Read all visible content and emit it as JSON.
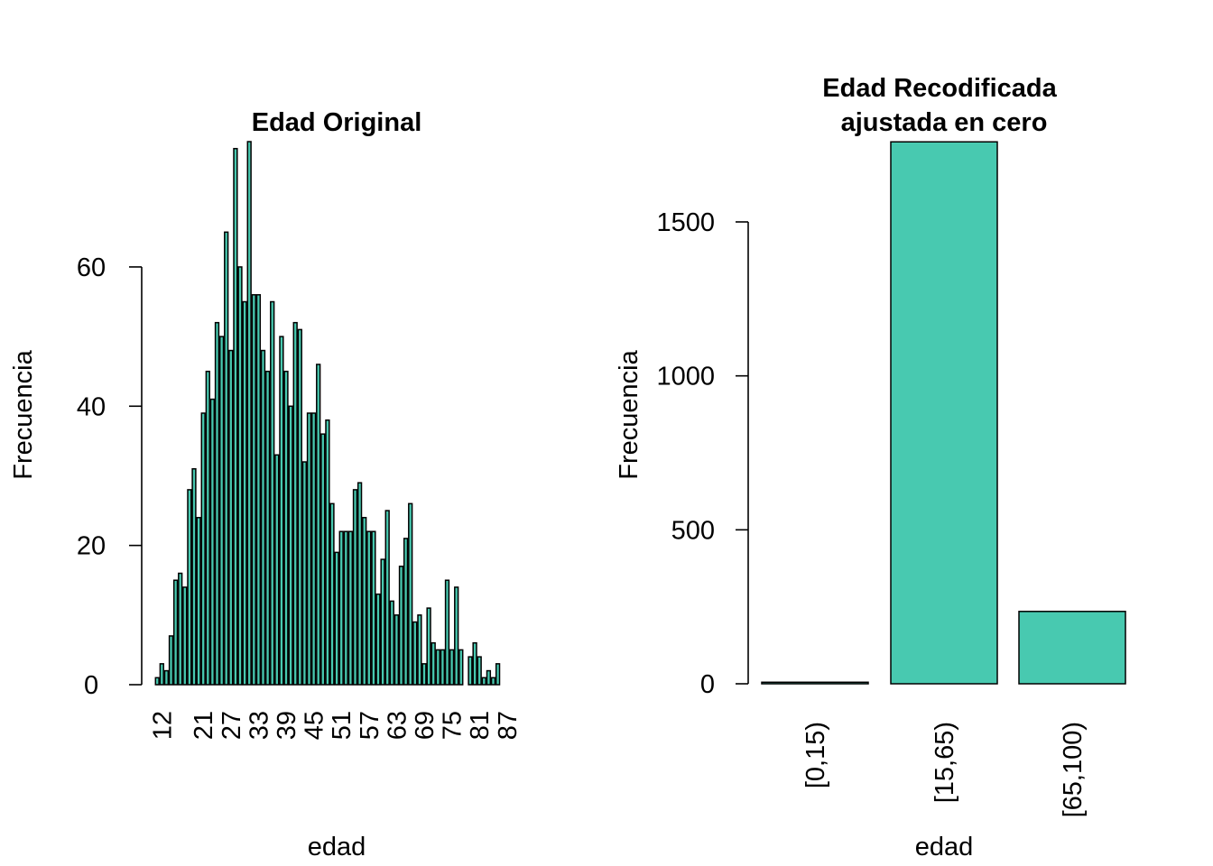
{
  "colors": {
    "bar_fill": "#48C9B0",
    "bar_stroke": "#000000"
  },
  "chart_data": [
    {
      "type": "bar",
      "title": "Edad Original",
      "xlabel": "edad",
      "ylabel": "Frecuencia",
      "ylim": [
        0,
        78
      ],
      "yticks": [
        0,
        20,
        40,
        60
      ],
      "categories": [
        11,
        12,
        13,
        14,
        15,
        16,
        17,
        18,
        19,
        20,
        21,
        22,
        23,
        24,
        25,
        26,
        27,
        28,
        29,
        30,
        31,
        32,
        33,
        34,
        35,
        36,
        37,
        38,
        39,
        40,
        41,
        42,
        43,
        44,
        45,
        46,
        47,
        48,
        49,
        50,
        51,
        52,
        53,
        54,
        55,
        56,
        57,
        58,
        59,
        60,
        61,
        62,
        63,
        64,
        65,
        66,
        67,
        68,
        69,
        70,
        71,
        72,
        73,
        74,
        75,
        76,
        77,
        78,
        79,
        80,
        81,
        82,
        83,
        84,
        85,
        86,
        87,
        88,
        89,
        90,
        91
      ],
      "values": [
        1,
        3,
        2,
        7,
        15,
        16,
        14,
        28,
        31,
        24,
        39,
        45,
        41,
        52,
        50,
        65,
        48,
        77,
        60,
        55,
        78,
        56,
        56,
        48,
        45,
        55,
        33,
        50,
        45,
        40,
        52,
        51,
        32,
        39,
        39,
        46,
        36,
        38,
        26,
        19,
        22,
        22,
        22,
        28,
        29,
        24,
        22,
        22,
        13,
        18,
        25,
        12,
        10,
        17,
        21,
        26,
        9,
        10,
        3,
        11,
        6,
        5,
        5,
        15,
        5,
        14,
        5,
        0,
        4,
        6,
        4,
        1,
        2,
        1,
        3,
        0,
        0,
        0,
        0,
        0,
        0
      ],
      "xtick_labels": [
        "12",
        "21",
        "27",
        "33",
        "39",
        "45",
        "51",
        "57",
        "63",
        "69",
        "75",
        "81",
        "87"
      ]
    },
    {
      "type": "bar",
      "title": "Edad Recodificada\najustada en cero",
      "title_lines": [
        "Edad Recodificada",
        "ajustada en cero"
      ],
      "xlabel": "edad",
      "ylabel": "Frecuencia",
      "ylim": [
        0,
        1750
      ],
      "yticks": [
        0,
        500,
        1000,
        1500
      ],
      "categories": [
        "[0,15)",
        "[15,65)",
        "[65,100)"
      ],
      "values": [
        5,
        1760,
        235
      ]
    }
  ]
}
